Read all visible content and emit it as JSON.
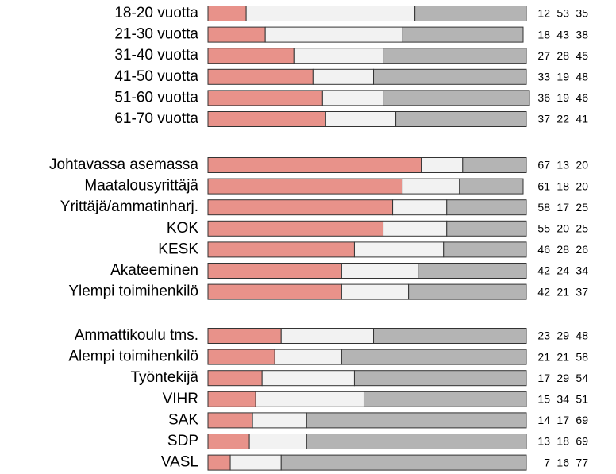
{
  "chart_data": [
    {
      "type": "bar",
      "orientation": "horizontal",
      "stacked": true,
      "xlim": [
        0,
        100
      ],
      "categories": [
        "18-20 vuotta",
        "21-30 vuotta",
        "31-40 vuotta",
        "41-50 vuotta",
        "51-60 vuotta",
        "61-70 vuotta"
      ],
      "series": [
        {
          "color": "#e8928a",
          "values": [
            12,
            18,
            27,
            33,
            36,
            37
          ]
        },
        {
          "color": "#f2f2f2",
          "values": [
            53,
            43,
            28,
            19,
            19,
            22
          ]
        },
        {
          "color": "#b4b4b4",
          "values": [
            35,
            38,
            45,
            48,
            46,
            41
          ]
        }
      ]
    },
    {
      "type": "bar",
      "orientation": "horizontal",
      "stacked": true,
      "xlim": [
        0,
        100
      ],
      "categories": [
        "Johtavassa asemassa",
        "Maatalousyrittäjä",
        "Yrittäjä/ammatinharj.",
        "KOK",
        "KESK",
        "Akateeminen",
        "Ylempi toimihenkilö"
      ],
      "series": [
        {
          "color": "#e8928a",
          "values": [
            67,
            61,
            58,
            55,
            46,
            42,
            42
          ]
        },
        {
          "color": "#f2f2f2",
          "values": [
            13,
            18,
            17,
            20,
            28,
            24,
            21
          ]
        },
        {
          "color": "#b4b4b4",
          "values": [
            20,
            20,
            25,
            25,
            26,
            34,
            37
          ]
        }
      ]
    },
    {
      "type": "bar",
      "orientation": "horizontal",
      "stacked": true,
      "xlim": [
        0,
        100
      ],
      "categories": [
        "Ammattikoulu tms.",
        "Alempi toimihenkilö",
        "Työntekijä",
        "VIHR",
        "SAK",
        "SDP",
        "VASL"
      ],
      "series": [
        {
          "color": "#e8928a",
          "values": [
            23,
            21,
            17,
            15,
            14,
            13,
            7
          ]
        },
        {
          "color": "#f2f2f2",
          "values": [
            29,
            21,
            29,
            34,
            17,
            18,
            16
          ]
        },
        {
          "color": "#b4b4b4",
          "values": [
            48,
            58,
            54,
            51,
            69,
            69,
            77
          ]
        }
      ]
    }
  ]
}
